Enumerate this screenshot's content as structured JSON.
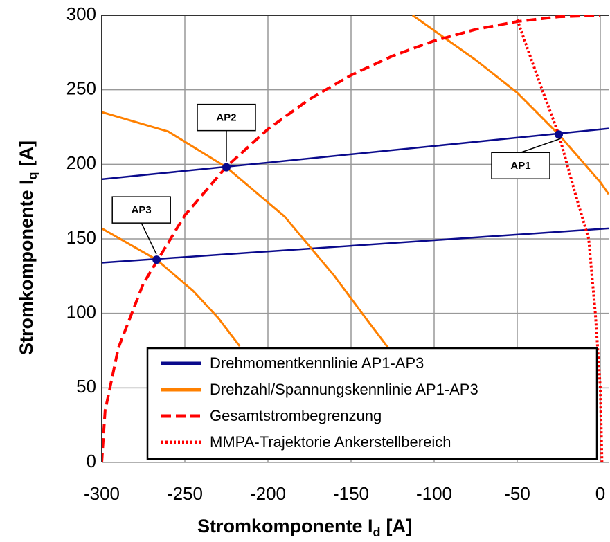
{
  "chart_data": {
    "type": "line",
    "xlabel": [
      "Stromkomponente I",
      "d",
      "[A]"
    ],
    "ylabel": [
      "Stromkomponente I",
      "q",
      "[A]"
    ],
    "xlim": [
      -300,
      5
    ],
    "ylim": [
      0,
      300
    ],
    "xticks": [
      -300,
      -250,
      -200,
      -150,
      -100,
      -50,
      0
    ],
    "yticks": [
      0,
      50,
      100,
      150,
      200,
      250,
      300
    ],
    "grid": true,
    "legend": "lower right",
    "series": [
      {
        "name": "Drehmomentkennlinie AP1-AP3",
        "color": "#0a0a8c",
        "style": "solid",
        "width": 2.5,
        "x": [
          -300,
          5
        ],
        "values": [
          190,
          224
        ]
      },
      {
        "name": "Drehmomentkennlinie AP1-AP3",
        "color": "#0a0a8c",
        "style": "solid",
        "width": 2.5,
        "legend": false,
        "x": [
          -300,
          5
        ],
        "values": [
          134,
          157
        ]
      },
      {
        "name": "Drehzahl/Spannungskennlinie AP1-AP3",
        "color": "#ff8000",
        "style": "solid",
        "width": 3,
        "x": [
          -113,
          -75,
          -50,
          -25,
          0,
          5
        ],
        "values": [
          300,
          270,
          248,
          220,
          188,
          180
        ]
      },
      {
        "name": "Drehzahl/Spannungskennlinie AP1-AP3",
        "color": "#ff8000",
        "style": "solid",
        "width": 3,
        "legend": false,
        "x": [
          -300,
          -260,
          -225,
          -190,
          -160,
          -140,
          -123
        ],
        "values": [
          235,
          222,
          198,
          165,
          125,
          95,
          70
        ]
      },
      {
        "name": "Drehzahl/Spannungskennlinie AP1-AP3",
        "color": "#ff8000",
        "style": "solid",
        "width": 3,
        "legend": false,
        "x": [
          -300,
          -267,
          -245,
          -230,
          -217
        ],
        "values": [
          157,
          136,
          115,
          97,
          78
        ]
      },
      {
        "name": "Gesamtstrombegrenzung",
        "color": "#ff0000",
        "style": "dashed",
        "width": 4,
        "x": [
          -300,
          -298,
          -290,
          -275,
          -250,
          -225,
          -200,
          -175,
          -150,
          -125,
          -100,
          -75,
          -50,
          -25,
          0
        ],
        "values": [
          0,
          34.6,
          76.8,
          119.9,
          165.8,
          198.4,
          223.6,
          243.7,
          259.8,
          272.7,
          282.8,
          290.5,
          295.8,
          299,
          300
        ]
      },
      {
        "name": "MMPA-Trajektorie Ankerstellbereich",
        "color": "#ff0000",
        "style": "dotted",
        "width": 4,
        "x": [
          -50,
          -35,
          -25,
          -15,
          -7,
          -3,
          0,
          1
        ],
        "values": [
          297,
          250,
          220,
          180,
          150,
          100,
          50,
          0
        ]
      }
    ],
    "points": {
      "color": "#0a0a8c",
      "items": [
        {
          "label": "AP1",
          "x": -25,
          "y": 220
        },
        {
          "label": "AP2",
          "x": -225,
          "y": 198
        },
        {
          "label": "AP3",
          "x": -267,
          "y": 136
        }
      ]
    }
  }
}
